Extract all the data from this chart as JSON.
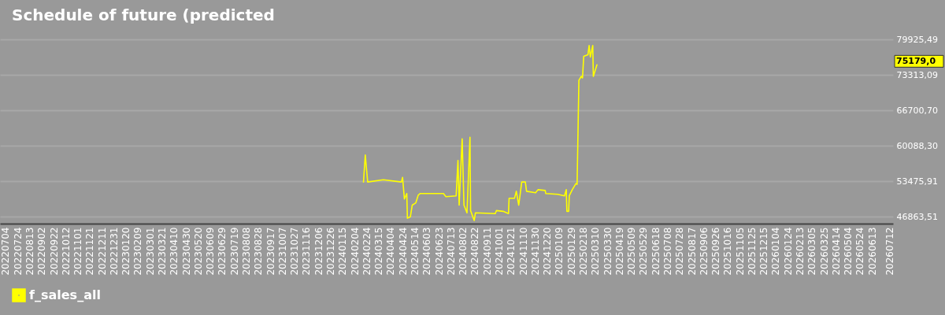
{
  "chart_data": {
    "type": "line",
    "title": "Schedule of future (predicted",
    "x": [
      "2024-02-19",
      "2024-02-22",
      "2024-02-26",
      "2024-03-23",
      "2024-04-22",
      "2024-04-24",
      "2024-04-27",
      "2024-05-01",
      "2024-05-02",
      "2024-05-07",
      "2024-05-10",
      "2024-05-16",
      "2024-05-20",
      "2024-05-23",
      "2024-07-01",
      "2024-07-05",
      "2024-07-22",
      "2024-07-25",
      "2024-07-27",
      "2024-08-01",
      "2024-08-04",
      "2024-08-09",
      "2024-08-14",
      "2024-08-15",
      "2024-08-21",
      "2024-08-23",
      "2024-09-25",
      "2024-09-27",
      "2024-10-08",
      "2024-10-17",
      "2024-10-18",
      "2024-10-27",
      "2024-10-30",
      "2024-11-03",
      "2024-11-08",
      "2024-11-14",
      "2024-11-16",
      "2024-12-01",
      "2024-12-05",
      "2024-12-17",
      "2024-12-18",
      "2025-01-07",
      "2025-01-18",
      "2025-01-21",
      "2025-01-22",
      "2025-01-25",
      "2025-01-26",
      "2025-01-31",
      "2025-02-06",
      "2025-02-08",
      "2025-02-11",
      "2025-02-15",
      "2025-02-17",
      "2025-02-19",
      "2025-02-26",
      "2025-02-28",
      "2025-03-02",
      "2025-03-06",
      "2025-03-07",
      "2025-03-13"
    ],
    "series": [
      {
        "name": "f_sales_all",
        "color": "#ffff00",
        "values": [
          53330,
          58360,
          53330,
          53760,
          53330,
          54200,
          50170,
          51180,
          46580,
          46860,
          49020,
          49450,
          50890,
          51180,
          51180,
          50600,
          50750,
          57360,
          49020,
          61380,
          49020,
          47580,
          61670,
          48010,
          46150,
          47580,
          47440,
          48010,
          47870,
          47440,
          50310,
          50310,
          51610,
          49020,
          53330,
          53330,
          51610,
          51320,
          51900,
          51750,
          51180,
          51030,
          50750,
          51900,
          47870,
          47870,
          50750,
          51900,
          53050,
          52900,
          72310,
          73030,
          72740,
          76760,
          77050,
          78780,
          76620,
          78780,
          73030,
          75179
        ]
      }
    ],
    "xlim": [
      "2022-06-25",
      "2026-07-18"
    ],
    "xticks": [
      {
        "value": "2022-07-04",
        "label": "20220704"
      },
      {
        "value": "2022-07-24",
        "label": "20220724"
      },
      {
        "value": "2022-08-13",
        "label": "20220813"
      },
      {
        "value": "2022-09-02",
        "label": "20220902"
      },
      {
        "value": "2022-09-22",
        "label": "20220922"
      },
      {
        "value": "2022-10-12",
        "label": "20221012"
      },
      {
        "value": "2022-11-01",
        "label": "20221101"
      },
      {
        "value": "2022-11-21",
        "label": "20221121"
      },
      {
        "value": "2022-12-11",
        "label": "20221211"
      },
      {
        "value": "2022-12-31",
        "label": "20221231"
      },
      {
        "value": "2023-01-20",
        "label": "20230120"
      },
      {
        "value": "2023-02-09",
        "label": "20230209"
      },
      {
        "value": "2023-03-01",
        "label": "20230301"
      },
      {
        "value": "2023-03-21",
        "label": "20230321"
      },
      {
        "value": "2023-04-10",
        "label": "20230410"
      },
      {
        "value": "2023-04-30",
        "label": "20230430"
      },
      {
        "value": "2023-05-20",
        "label": "20230520"
      },
      {
        "value": "2023-06-09",
        "label": "20230609"
      },
      {
        "value": "2023-06-29",
        "label": "20230629"
      },
      {
        "value": "2023-07-19",
        "label": "20230719"
      },
      {
        "value": "2023-08-08",
        "label": "20230808"
      },
      {
        "value": "2023-08-28",
        "label": "20230828"
      },
      {
        "value": "2023-09-17",
        "label": "20230917"
      },
      {
        "value": "2023-10-07",
        "label": "20231007"
      },
      {
        "value": "2023-10-27",
        "label": "20231027"
      },
      {
        "value": "2023-11-16",
        "label": "20231116"
      },
      {
        "value": "2023-12-06",
        "label": "20231206"
      },
      {
        "value": "2023-12-26",
        "label": "20231226"
      },
      {
        "value": "2024-01-15",
        "label": "20240115"
      },
      {
        "value": "2024-02-04",
        "label": "20240204"
      },
      {
        "value": "2024-02-24",
        "label": "20240224"
      },
      {
        "value": "2024-03-15",
        "label": "20240315"
      },
      {
        "value": "2024-04-04",
        "label": "20240404"
      },
      {
        "value": "2024-04-24",
        "label": "20240424"
      },
      {
        "value": "2024-05-14",
        "label": "20240514"
      },
      {
        "value": "2024-06-03",
        "label": "20240603"
      },
      {
        "value": "2024-06-23",
        "label": "20240623"
      },
      {
        "value": "2024-07-13",
        "label": "20240713"
      },
      {
        "value": "2024-08-02",
        "label": "20240802"
      },
      {
        "value": "2024-08-22",
        "label": "20240822"
      },
      {
        "value": "2024-09-11",
        "label": "20240911"
      },
      {
        "value": "2024-10-01",
        "label": "20241001"
      },
      {
        "value": "2024-10-21",
        "label": "20241021"
      },
      {
        "value": "2024-11-10",
        "label": "20241110"
      },
      {
        "value": "2024-11-30",
        "label": "20241130"
      },
      {
        "value": "2024-12-20",
        "label": "20241220"
      },
      {
        "value": "2025-01-09",
        "label": "20250109"
      },
      {
        "value": "2025-01-29",
        "label": "20250129"
      },
      {
        "value": "2025-02-18",
        "label": "20250218"
      },
      {
        "value": "2025-03-10",
        "label": "20250310"
      },
      {
        "value": "2025-03-30",
        "label": "20250330"
      },
      {
        "value": "2025-04-19",
        "label": "20250419"
      },
      {
        "value": "2025-05-09",
        "label": "20250509"
      },
      {
        "value": "2025-05-29",
        "label": "20250529"
      },
      {
        "value": "2025-06-18",
        "label": "20250618"
      },
      {
        "value": "2025-07-08",
        "label": "20250708"
      },
      {
        "value": "2025-07-28",
        "label": "20250728"
      },
      {
        "value": "2025-08-17",
        "label": "20250817"
      },
      {
        "value": "2025-09-06",
        "label": "20250906"
      },
      {
        "value": "2025-09-26",
        "label": "20250926"
      },
      {
        "value": "2025-10-16",
        "label": "20251016"
      },
      {
        "value": "2025-11-05",
        "label": "20251105"
      },
      {
        "value": "2025-11-25",
        "label": "20251125"
      },
      {
        "value": "2025-12-15",
        "label": "20251215"
      },
      {
        "value": "2026-01-04",
        "label": "20260104"
      },
      {
        "value": "2026-01-24",
        "label": "20260124"
      },
      {
        "value": "2026-02-13",
        "label": "20260213"
      },
      {
        "value": "2026-03-05",
        "label": "20260305"
      },
      {
        "value": "2026-03-25",
        "label": "20260325"
      },
      {
        "value": "2026-04-14",
        "label": "20260414"
      },
      {
        "value": "2026-05-04",
        "label": "20260504"
      },
      {
        "value": "2026-05-24",
        "label": "20260524"
      },
      {
        "value": "2026-06-13",
        "label": "20260613"
      },
      {
        "value": "2026-07-12",
        "label": "20260712"
      }
    ],
    "ylim": [
      45570,
      79925.49
    ],
    "yticks": [
      {
        "value": 46863.51,
        "label": "46863,51"
      },
      {
        "value": 53475.91,
        "label": "53475,91"
      },
      {
        "value": 60088.3,
        "label": "60088,30"
      },
      {
        "value": 66700.7,
        "label": "66700,70"
      },
      {
        "value": 73313.09,
        "label": "73313,09"
      },
      {
        "value": 79925.49,
        "label": "79925,49"
      }
    ],
    "annotations": [
      "75179,0"
    ],
    "grid": "y",
    "legend": "bottom left"
  }
}
